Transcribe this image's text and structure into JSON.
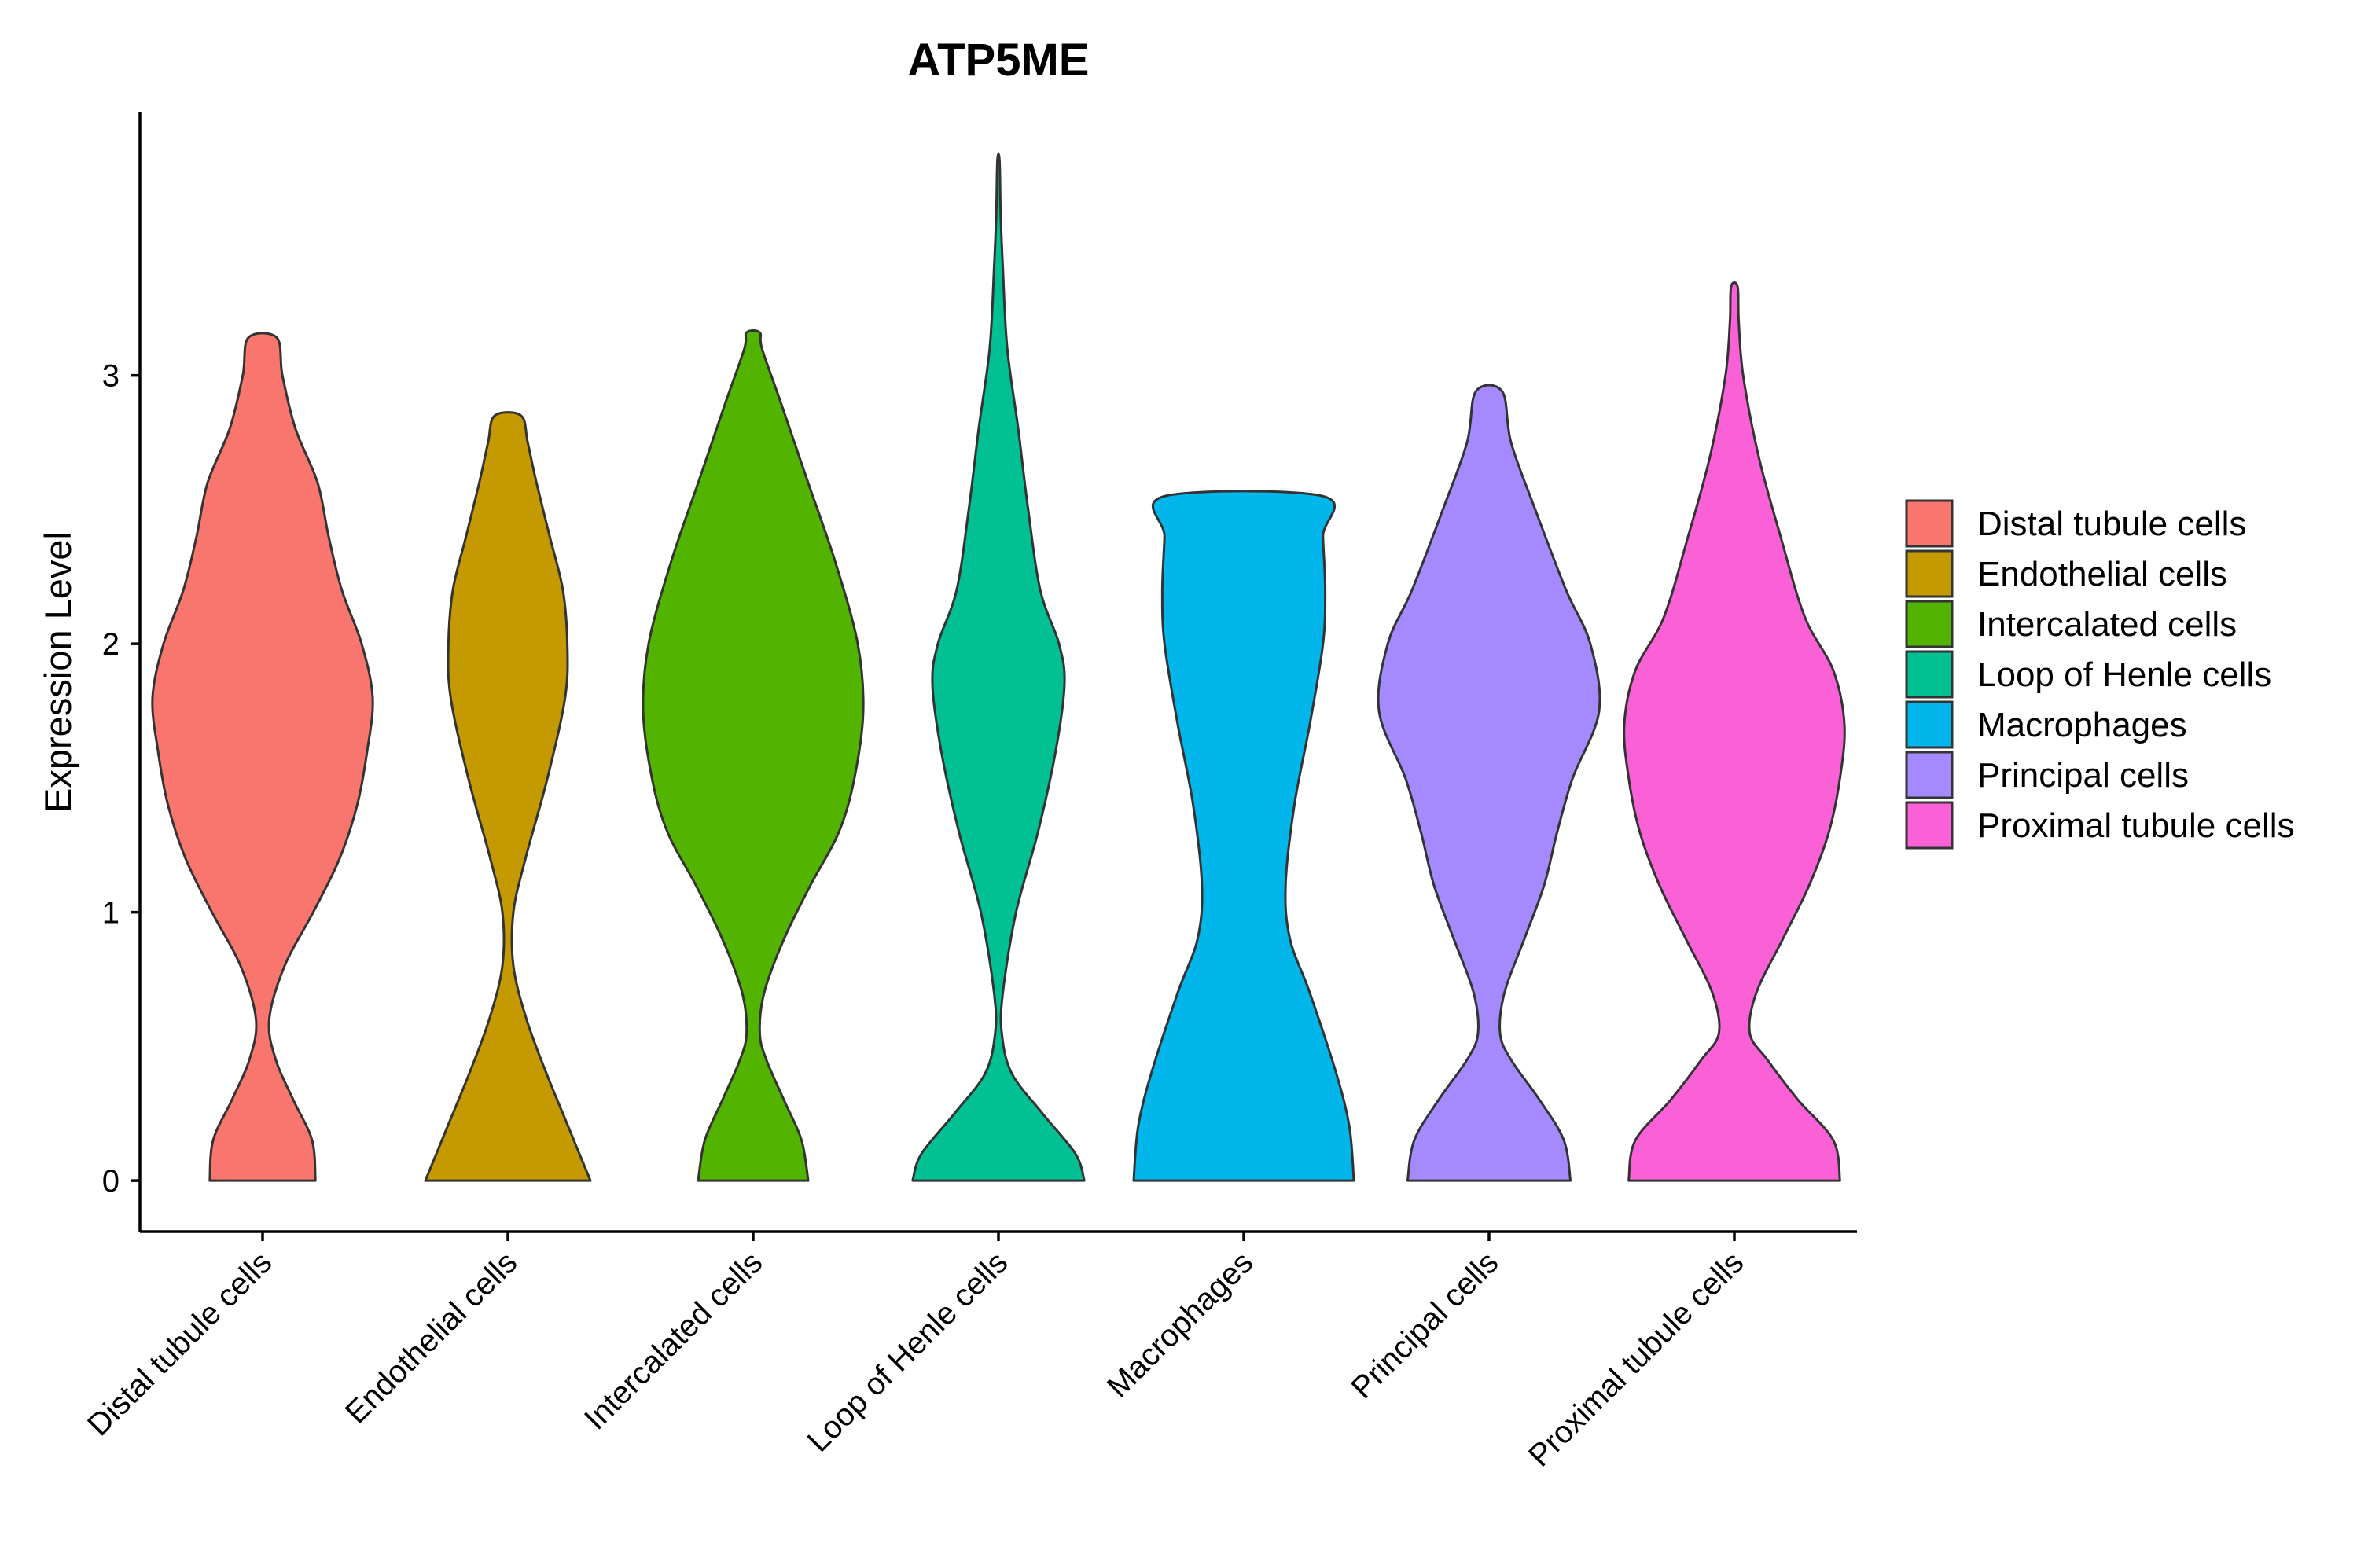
{
  "chart_data": {
    "type": "violin",
    "title": "ATP5ME",
    "xlabel": "",
    "ylabel": "Expression Level",
    "ylim": [
      -0.19,
      3.98
    ],
    "yticks": [
      "0",
      "1",
      "2",
      "3"
    ],
    "categories": [
      "Distal tubule cells",
      "Endothelial cells",
      "Intercalated cells",
      "Loop of Henle cells",
      "Macrophages",
      "Principal cells",
      "Proximal tubule cells"
    ],
    "legend": {
      "position": "right",
      "entries": [
        "Distal tubule cells",
        "Endothelial cells",
        "Intercalated cells",
        "Loop of Henle cells",
        "Macrophages",
        "Principal cells",
        "Proximal tubule cells"
      ]
    },
    "colors": [
      "#F8766D",
      "#C49A00",
      "#53B400",
      "#00C094",
      "#00B6EB",
      "#A58AFF",
      "#FB61D7"
    ],
    "series": [
      {
        "name": "Distal tubule cells",
        "max": 3.14,
        "profile": [
          [
            0,
            0.48
          ],
          [
            0.15,
            0.45
          ],
          [
            0.3,
            0.28
          ],
          [
            0.45,
            0.12
          ],
          [
            0.6,
            0.06
          ],
          [
            0.8,
            0.2
          ],
          [
            1.0,
            0.46
          ],
          [
            1.2,
            0.7
          ],
          [
            1.4,
            0.86
          ],
          [
            1.6,
            0.95
          ],
          [
            1.8,
            1.0
          ],
          [
            2.0,
            0.9
          ],
          [
            2.2,
            0.72
          ],
          [
            2.4,
            0.6
          ],
          [
            2.6,
            0.5
          ],
          [
            2.8,
            0.3
          ],
          [
            3.0,
            0.18
          ],
          [
            3.14,
            0.13
          ]
        ]
      },
      {
        "name": "Endothelial cells",
        "max": 2.85,
        "profile": [
          [
            0,
            0.75
          ],
          [
            0.2,
            0.55
          ],
          [
            0.4,
            0.35
          ],
          [
            0.6,
            0.17
          ],
          [
            0.8,
            0.05
          ],
          [
            1.0,
            0.05
          ],
          [
            1.2,
            0.16
          ],
          [
            1.5,
            0.36
          ],
          [
            1.8,
            0.52
          ],
          [
            2.0,
            0.54
          ],
          [
            2.2,
            0.5
          ],
          [
            2.4,
            0.38
          ],
          [
            2.6,
            0.26
          ],
          [
            2.75,
            0.18
          ],
          [
            2.85,
            0.12
          ]
        ]
      },
      {
        "name": "Intercalated cells",
        "max": 3.16,
        "profile": [
          [
            0,
            0.5
          ],
          [
            0.15,
            0.44
          ],
          [
            0.3,
            0.28
          ],
          [
            0.45,
            0.12
          ],
          [
            0.55,
            0.06
          ],
          [
            0.7,
            0.1
          ],
          [
            0.9,
            0.28
          ],
          [
            1.1,
            0.52
          ],
          [
            1.3,
            0.78
          ],
          [
            1.5,
            0.92
          ],
          [
            1.75,
            1.0
          ],
          [
            2.0,
            0.95
          ],
          [
            2.3,
            0.75
          ],
          [
            2.6,
            0.5
          ],
          [
            2.9,
            0.25
          ],
          [
            3.1,
            0.08
          ],
          [
            3.16,
            0.06
          ]
        ]
      },
      {
        "name": "Loop of Henle cells",
        "max": 3.8,
        "profile": [
          [
            0,
            0.78
          ],
          [
            0.1,
            0.7
          ],
          [
            0.25,
            0.4
          ],
          [
            0.4,
            0.12
          ],
          [
            0.55,
            0.03
          ],
          [
            0.7,
            0.04
          ],
          [
            1.0,
            0.16
          ],
          [
            1.3,
            0.36
          ],
          [
            1.6,
            0.52
          ],
          [
            1.85,
            0.6
          ],
          [
            2.0,
            0.55
          ],
          [
            2.2,
            0.38
          ],
          [
            2.5,
            0.27
          ],
          [
            2.8,
            0.18
          ],
          [
            3.1,
            0.08
          ],
          [
            3.4,
            0.04
          ],
          [
            3.6,
            0.02
          ],
          [
            3.8,
            0.01
          ]
        ]
      },
      {
        "name": "Macrophages",
        "max": 2.55,
        "profile": [
          [
            0,
            1.0
          ],
          [
            0.2,
            0.96
          ],
          [
            0.4,
            0.84
          ],
          [
            0.7,
            0.6
          ],
          [
            0.9,
            0.42
          ],
          [
            1.1,
            0.38
          ],
          [
            1.4,
            0.46
          ],
          [
            1.7,
            0.6
          ],
          [
            2.0,
            0.72
          ],
          [
            2.2,
            0.74
          ],
          [
            2.4,
            0.72
          ],
          [
            2.55,
            0.72
          ]
        ]
      },
      {
        "name": "Principal cells",
        "max": 2.94,
        "profile": [
          [
            0,
            0.74
          ],
          [
            0.15,
            0.68
          ],
          [
            0.3,
            0.46
          ],
          [
            0.45,
            0.2
          ],
          [
            0.55,
            0.1
          ],
          [
            0.7,
            0.14
          ],
          [
            0.9,
            0.32
          ],
          [
            1.1,
            0.5
          ],
          [
            1.3,
            0.62
          ],
          [
            1.5,
            0.76
          ],
          [
            1.75,
            1.0
          ],
          [
            2.0,
            0.92
          ],
          [
            2.2,
            0.7
          ],
          [
            2.5,
            0.42
          ],
          [
            2.75,
            0.2
          ],
          [
            2.94,
            0.12
          ]
        ]
      },
      {
        "name": "Proximal tubule cells",
        "max": 3.33,
        "profile": [
          [
            0,
            0.96
          ],
          [
            0.15,
            0.9
          ],
          [
            0.3,
            0.58
          ],
          [
            0.45,
            0.3
          ],
          [
            0.55,
            0.14
          ],
          [
            0.7,
            0.2
          ],
          [
            0.9,
            0.44
          ],
          [
            1.1,
            0.68
          ],
          [
            1.3,
            0.86
          ],
          [
            1.5,
            0.96
          ],
          [
            1.7,
            1.0
          ],
          [
            1.9,
            0.9
          ],
          [
            2.1,
            0.64
          ],
          [
            2.4,
            0.42
          ],
          [
            2.7,
            0.22
          ],
          [
            3.0,
            0.08
          ],
          [
            3.2,
            0.04
          ],
          [
            3.33,
            0.03
          ]
        ]
      }
    ]
  }
}
